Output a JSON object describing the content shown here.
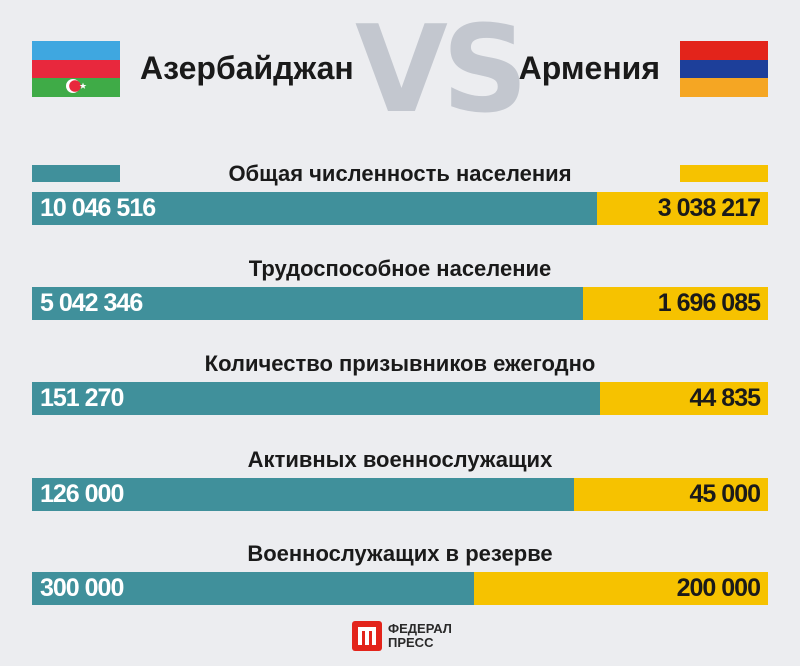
{
  "header": {
    "country_left": "Азербайджан",
    "country_right": "Армения",
    "vs": "VS"
  },
  "colors": {
    "azerbaijan_bar": "#40909b",
    "armenia_bar": "#f6c200",
    "flag_az": [
      "#3fa7e0",
      "#e8283d",
      "#3fab47"
    ],
    "flag_am": [
      "#e3241b",
      "#1d3f9a",
      "#f5a623"
    ],
    "vs_text": "#c3c7cf",
    "background": "#ecedf0"
  },
  "chart_data": {
    "type": "bar",
    "orientation": "horizontal-stacked-proportional",
    "series": [
      {
        "name": "Азербайджан",
        "values": [
          10046516,
          5042346,
          151270,
          126000,
          300000
        ]
      },
      {
        "name": "Армения",
        "values": [
          3038217,
          1696085,
          44835,
          45000,
          200000
        ]
      }
    ],
    "categories": [
      "Общая численность населения",
      "Трудоспособное население",
      "Количество призывников ежегодно",
      "Активных военнослужащих",
      "Военнослужащих в резерве"
    ],
    "labels_left": [
      "10 046 516",
      "5 042 346",
      "151 270",
      "126 000",
      "300 000"
    ],
    "labels_right": [
      "3 038 217",
      "1 696 085",
      "44 835",
      "45 000",
      "200 000"
    ],
    "legend": "top"
  },
  "footer": {
    "logo_line1": "ФЕДЕРАЛ",
    "logo_line2": "ПРЕСС"
  }
}
